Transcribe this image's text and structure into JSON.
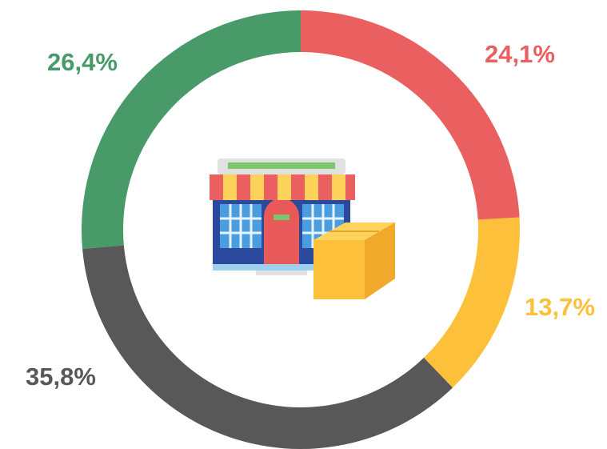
{
  "chart_data": {
    "type": "donut",
    "values": [
      24.1,
      13.7,
      35.8,
      26.4
    ],
    "value_labels": [
      "24,1%",
      "13,7%",
      "35,8%",
      "26,4%"
    ],
    "colors": [
      "#ea5f60",
      "#fcc03a",
      "#585858",
      "#489b68"
    ]
  }
}
